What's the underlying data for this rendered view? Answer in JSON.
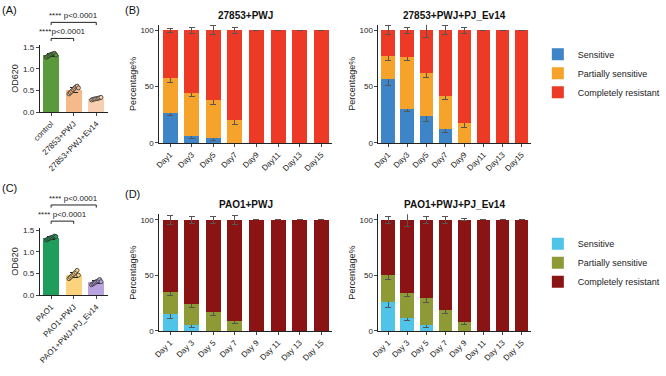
{
  "chart_data": [
    {
      "type": "bar",
      "panel": "(A)",
      "y_label": "OD620",
      "categories": [
        "control",
        "27853+PWJ",
        "27853+PWJ+Ev14"
      ],
      "values": [
        1.32,
        0.52,
        0.31
      ],
      "errors": [
        0.03,
        0.06,
        0.02
      ],
      "points": [
        [
          1.27,
          1.29,
          1.31,
          1.33,
          1.34,
          1.35,
          1.36,
          1.32
        ],
        [
          0.42,
          0.45,
          0.48,
          0.52,
          0.55,
          0.58,
          0.6,
          0.56
        ],
        [
          0.28,
          0.29,
          0.3,
          0.31,
          0.31,
          0.32,
          0.33,
          0.34
        ]
      ],
      "colors": [
        "#5a9a3c",
        "#f6b98a",
        "#f7cfb0"
      ],
      "ylim": [
        0,
        1.55
      ],
      "yticks": [
        {
          "value": 0,
          "label": "0.0"
        },
        {
          "value": 0.5,
          "label": "0.5"
        },
        {
          "value": 1,
          "label": "1.0"
        },
        {
          "value": 1.5,
          "label": "1.5"
        }
      ],
      "grid": false,
      "annotations": [
        {
          "text": "****p<0.0001",
          "from": "control",
          "to": "27853+PWJ"
        },
        {
          "text": "**** p<0.0001",
          "from": "control",
          "to": "27853+PWJ+Ev14"
        }
      ]
    },
    {
      "type": "bar",
      "stacked": true,
      "panel": "(B)",
      "title": "27853+PWJ",
      "y_label": "Percentage%",
      "categories": [
        "Day1",
        "Day3",
        "Day5",
        "Day7",
        "Day9",
        "Day11",
        "Day13",
        "Day15"
      ],
      "series": [
        {
          "name": "Sensitive",
          "color": "#3d85c6",
          "values": [
            27,
            6,
            4,
            0,
            0,
            0,
            0,
            0
          ],
          "errors": [
            3,
            2,
            2,
            0,
            0,
            0,
            0,
            0
          ]
        },
        {
          "name": "Partially sensitive",
          "color": "#f6a32c",
          "values": [
            31,
            38,
            34,
            20,
            0,
            0,
            0,
            0
          ],
          "errors": [
            4,
            3,
            4,
            4,
            0,
            0,
            0,
            0
          ]
        },
        {
          "name": "Completely resistant",
          "color": "#ec3a26",
          "values": [
            42,
            56,
            62,
            80,
            100,
            100,
            100,
            100
          ],
          "errors": [
            2,
            3,
            4,
            3,
            0,
            0,
            0,
            0
          ]
        }
      ],
      "ylim": [
        0,
        105
      ],
      "yticks": [
        0,
        50,
        100
      ],
      "grid": false
    },
    {
      "type": "bar",
      "stacked": true,
      "title": "27853+PWJ+PJ_Ev14",
      "y_label": "Percentage%",
      "categories": [
        "Day1",
        "Day3",
        "Day5",
        "Day7",
        "Day9",
        "Day11",
        "Day13",
        "Day15"
      ],
      "series": [
        {
          "name": "Sensitive",
          "color": "#3d85c6",
          "values": [
            57,
            30,
            24,
            12,
            0,
            0,
            0,
            0
          ],
          "errors": [
            6,
            2,
            5,
            3,
            0,
            0,
            0,
            0
          ]
        },
        {
          "name": "Partially sensitive",
          "color": "#f6a32c",
          "values": [
            20,
            46,
            38,
            30,
            18,
            0,
            0,
            0
          ],
          "errors": [
            4,
            3,
            4,
            3,
            4,
            0,
            0,
            0
          ]
        },
        {
          "name": "Completely resistant",
          "color": "#ec3a26",
          "values": [
            23,
            24,
            38,
            58,
            82,
            100,
            100,
            100
          ],
          "errors": [
            4,
            3,
            6,
            4,
            3,
            0,
            0,
            0
          ]
        }
      ],
      "ylim": [
        0,
        105
      ],
      "yticks": [
        0,
        50,
        100
      ],
      "grid": false,
      "legend": "right"
    },
    {
      "type": "bar",
      "panel": "(C)",
      "y_label": "OD620",
      "categories": [
        "PAO1",
        "PAO1+PWJ",
        "PAO1+PWJ+PJ_Ev14"
      ],
      "values": [
        1.32,
        0.47,
        0.3
      ],
      "errors": [
        0.03,
        0.06,
        0.04
      ],
      "points": [
        [
          1.27,
          1.29,
          1.3,
          1.32,
          1.33,
          1.34,
          1.36,
          1.35
        ],
        [
          0.38,
          0.41,
          0.44,
          0.47,
          0.5,
          0.53,
          0.57,
          0.46
        ],
        [
          0.24,
          0.26,
          0.28,
          0.3,
          0.32,
          0.33,
          0.36,
          0.31
        ]
      ],
      "colors": [
        "#1e9e5a",
        "#fdd27c",
        "#b9a2e0"
      ],
      "ylim": [
        0,
        1.55
      ],
      "yticks": [
        {
          "value": 0,
          "label": "0.0"
        },
        {
          "value": 0.5,
          "label": "0.5"
        },
        {
          "value": 1,
          "label": "1.0"
        },
        {
          "value": 1.5,
          "label": "1.5"
        }
      ],
      "grid": false,
      "annotations": [
        {
          "text": "**** p<0.0001",
          "from": "PAO1",
          "to": "PAO1+PWJ"
        },
        {
          "text": "**** p<0.0001",
          "from": "PAO1",
          "to": "PAO1+PWJ+PJ_Ev14"
        }
      ]
    },
    {
      "type": "bar",
      "stacked": true,
      "panel": "(D)",
      "title": "PAO1+PWJ",
      "y_label": "Percentage%",
      "categories": [
        "Day 1",
        "Day 3",
        "Day 5",
        "Day 7",
        "Day 9",
        "Day 11",
        "Day 13",
        "Day 15"
      ],
      "series": [
        {
          "name": "Sensitive",
          "color": "#4fc3e8",
          "values": [
            15,
            5,
            0,
            0,
            0,
            0,
            0,
            0
          ],
          "errors": [
            4,
            2,
            0,
            0,
            0,
            0,
            0,
            0
          ]
        },
        {
          "name": "Partially sensitive",
          "color": "#8e9a35",
          "values": [
            20,
            19,
            17,
            9,
            0,
            0,
            0,
            0
          ],
          "errors": [
            3,
            3,
            3,
            2,
            0,
            0,
            0,
            0
          ]
        },
        {
          "name": "Completely resistant",
          "color": "#8a1414",
          "values": [
            65,
            76,
            83,
            91,
            100,
            100,
            100,
            100
          ],
          "errors": [
            4,
            3,
            3,
            4,
            0,
            0,
            0,
            0
          ]
        }
      ],
      "ylim": [
        0,
        105
      ],
      "yticks": [
        0,
        50,
        100
      ],
      "grid": false
    },
    {
      "type": "bar",
      "stacked": true,
      "title": "PAO1+PWJ+PJ_Ev14",
      "y_label": "Percentage%",
      "categories": [
        "Day 1",
        "Day 3",
        "Day 5",
        "Day 7",
        "Day 9",
        "Day 11",
        "Day 13",
        "Day 15"
      ],
      "series": [
        {
          "name": "Sensitive",
          "color": "#4fc3e8",
          "values": [
            26,
            12,
            5,
            0,
            0,
            0,
            0,
            0
          ],
          "errors": [
            5,
            3,
            2,
            0,
            0,
            0,
            0,
            0
          ]
        },
        {
          "name": "Partially sensitive",
          "color": "#8e9a35",
          "values": [
            24,
            22,
            25,
            19,
            8,
            0,
            0,
            0
          ],
          "errors": [
            4,
            3,
            4,
            3,
            2,
            0,
            0,
            0
          ]
        },
        {
          "name": "Completely resistant",
          "color": "#8a1414",
          "values": [
            50,
            66,
            70,
            81,
            92,
            100,
            100,
            100
          ],
          "errors": [
            3,
            6,
            3,
            3,
            1,
            0,
            0,
            0
          ]
        }
      ],
      "ylim": [
        0,
        105
      ],
      "yticks": [
        0,
        50,
        100
      ],
      "grid": false,
      "legend": "right"
    }
  ]
}
